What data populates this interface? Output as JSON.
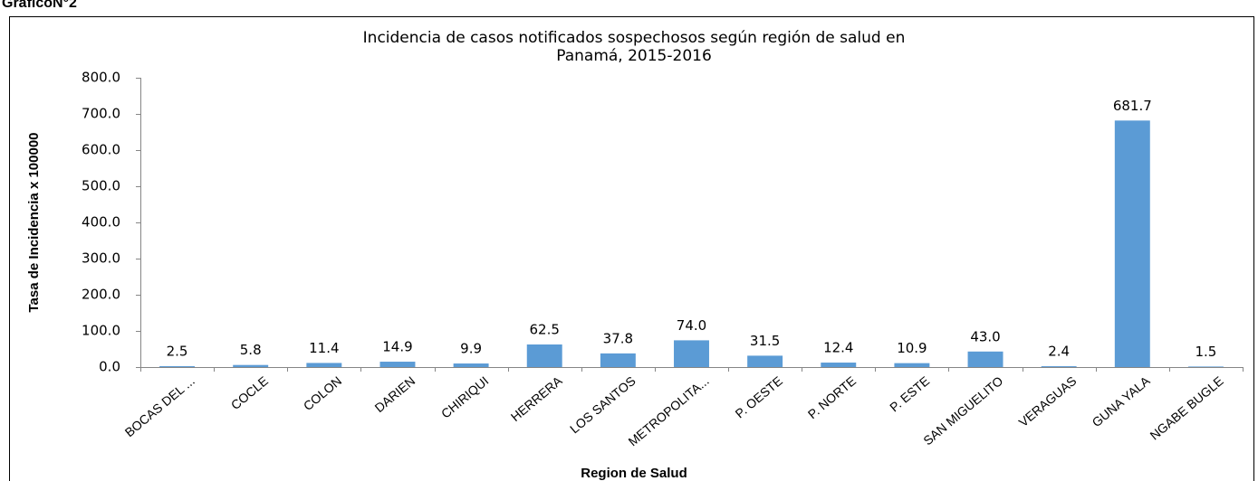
{
  "page_label": "GráficoN°2",
  "chart_data": {
    "type": "bar",
    "title": [
      "Incidencia de casos notificados sospechosos  según región de salud en",
      "Panamá, 2015-2016"
    ],
    "x_label": "Region de Salud",
    "y_label": "Tasa de Incidencia x 100000",
    "categories": [
      "BOCAS DEL ...",
      "COCLE",
      "COLON",
      "DARIEN",
      "CHIRIQUI",
      "HERRERA",
      "LOS SANTOS",
      "METROPOLITA...",
      "P. OESTE",
      "P. NORTE",
      "P. ESTE",
      "SAN MIGUELITO",
      "VERAGUAS",
      "GUNA YALA",
      "NGABE BUGLE"
    ],
    "values": [
      2.5,
      5.8,
      11.4,
      14.9,
      9.9,
      62.5,
      37.8,
      74.0,
      31.5,
      12.4,
      10.9,
      43.0,
      2.4,
      681.7,
      1.5
    ],
    "value_labels": [
      "2.5",
      "5.8",
      "11.4",
      "14.9",
      "9.9",
      "62.5",
      "37.8",
      "74.0",
      "31.5",
      "12.4",
      "10.9",
      "43.0",
      "2.4",
      "681.7",
      "1.5"
    ],
    "color": "#5b9bd5",
    "ylim": [
      0,
      800
    ],
    "yticks": [
      {
        "value": 0,
        "label": "0.0"
      },
      {
        "value": 100,
        "label": "100.0"
      },
      {
        "value": 200,
        "label": "200.0"
      },
      {
        "value": 300,
        "label": "300.0"
      },
      {
        "value": 400,
        "label": "400.0"
      },
      {
        "value": 500,
        "label": "500.0"
      },
      {
        "value": 600,
        "label": "600.0"
      },
      {
        "value": 700,
        "label": "700.0"
      },
      {
        "value": 800,
        "label": "800.0"
      }
    ],
    "grid": false
  }
}
